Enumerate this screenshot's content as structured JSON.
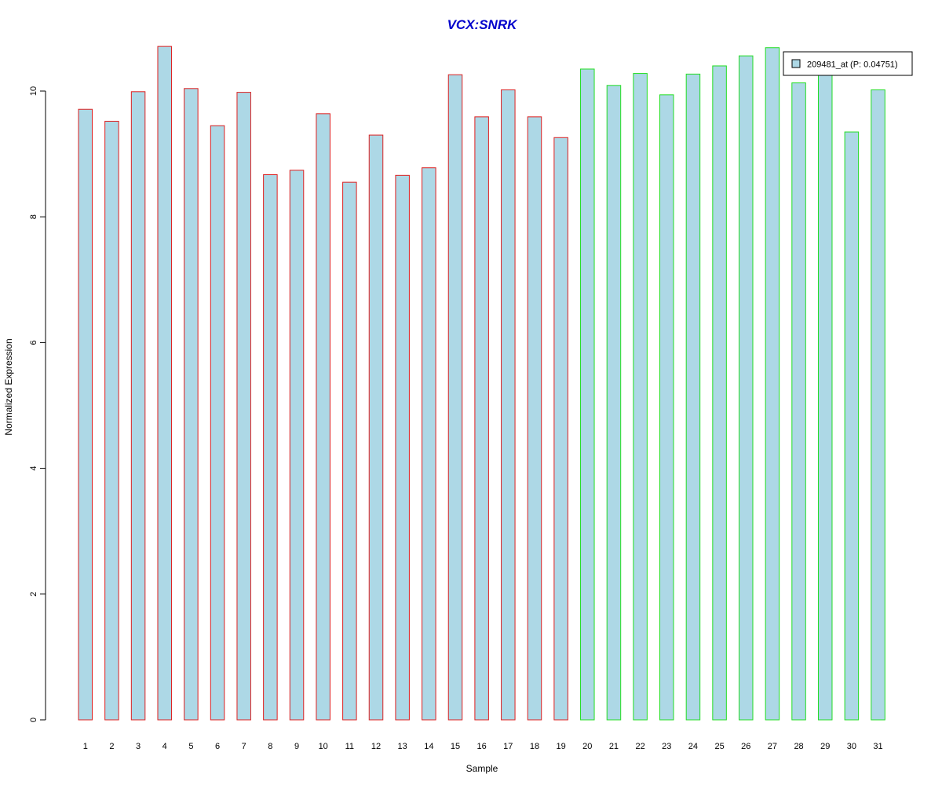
{
  "chart_data": {
    "type": "bar",
    "title": "VCX:SNRK",
    "xlabel": "Sample",
    "ylabel": "Normalized Expression",
    "ylim": [
      0,
      10.8
    ],
    "yticks": [
      0,
      2,
      4,
      6,
      8,
      10
    ],
    "grid": false,
    "legend_position": "top-right",
    "categories": [
      "1",
      "2",
      "3",
      "4",
      "5",
      "6",
      "7",
      "8",
      "9",
      "10",
      "11",
      "12",
      "13",
      "14",
      "15",
      "16",
      "17",
      "18",
      "19",
      "20",
      "21",
      "22",
      "23",
      "24",
      "25",
      "26",
      "27",
      "28",
      "29",
      "30",
      "31"
    ],
    "series": [
      {
        "name": "209481_at (P: 0.04751)",
        "values": [
          9.71,
          9.52,
          9.99,
          10.71,
          10.04,
          9.45,
          9.98,
          8.67,
          8.74,
          9.64,
          8.55,
          9.3,
          8.66,
          8.78,
          10.26,
          9.59,
          10.02,
          9.59,
          9.26,
          10.35,
          10.09,
          10.28,
          9.94,
          10.27,
          10.4,
          10.56,
          10.69,
          10.13,
          10.25,
          9.35,
          10.02
        ]
      }
    ],
    "group_border_colors": [
      "#dd2020",
      "#dd2020",
      "#dd2020",
      "#dd2020",
      "#dd2020",
      "#dd2020",
      "#dd2020",
      "#dd2020",
      "#dd2020",
      "#dd2020",
      "#dd2020",
      "#dd2020",
      "#dd2020",
      "#dd2020",
      "#dd2020",
      "#dd2020",
      "#dd2020",
      "#dd2020",
      "#dd2020",
      "#22dd22",
      "#22dd22",
      "#22dd22",
      "#22dd22",
      "#22dd22",
      "#22dd22",
      "#22dd22",
      "#22dd22",
      "#22dd22",
      "#22dd22",
      "#22dd22",
      "#22dd22"
    ]
  },
  "colors": {
    "bar_fill": "#add8e6",
    "title": "#0000cc",
    "axis": "#000000",
    "legend_border": "#000000"
  }
}
